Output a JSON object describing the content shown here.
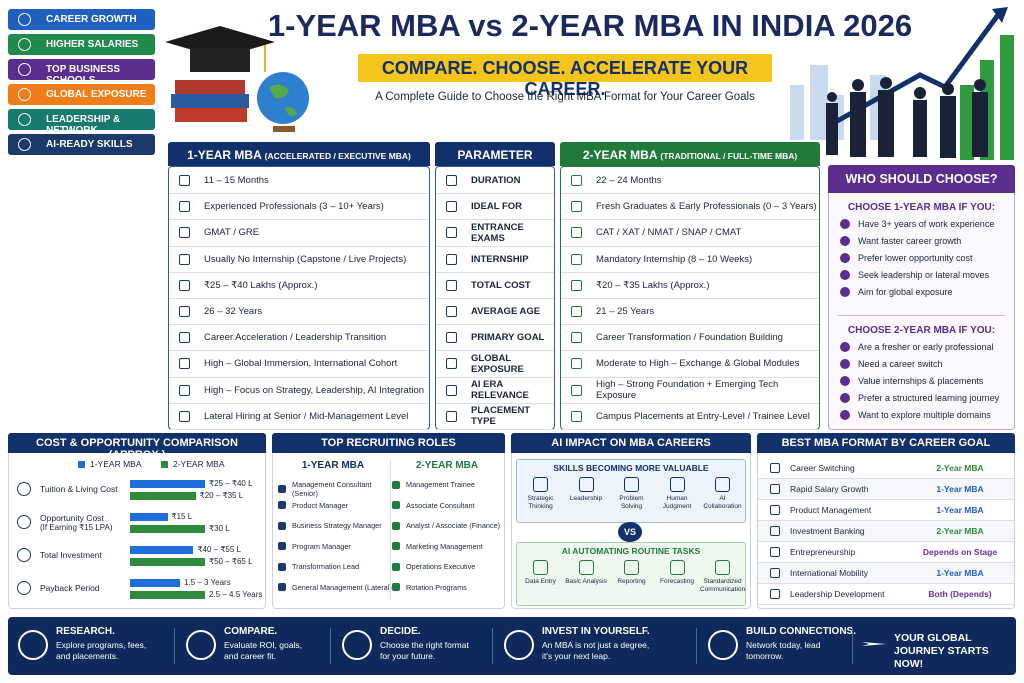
{
  "sidebar": {
    "tags": [
      {
        "text": "CAREER GROWTH",
        "color": "#1f5fbf"
      },
      {
        "text": "HIGHER SALARIES",
        "color": "#1f8a4c"
      },
      {
        "text": "TOP BUSINESS SCHOOLS",
        "color": "#5b2d8e"
      },
      {
        "text": "GLOBAL EXPOSURE",
        "color": "#f07d1a"
      },
      {
        "text": "LEADERSHIP & NETWORK",
        "color": "#177a6e"
      },
      {
        "text": "AI-READY SKILLS",
        "color": "#1b3a6b"
      }
    ]
  },
  "header": {
    "title": "1-YEAR MBA vs 2-YEAR MBA IN INDIA 2026",
    "tagline": "COMPARE. CHOOSE. ACCELERATE YOUR CAREER.",
    "subtitle": "A Complete Guide to Choose the Right MBA Format for Your Career Goals"
  },
  "table": {
    "one_title": "1-YEAR MBA",
    "one_sub": "(ACCELERATED / EXECUTIVE MBA)",
    "param_title": "PARAMETER",
    "two_title": "2-YEAR MBA",
    "two_sub": "(TRADITIONAL / FULL-TIME MBA)",
    "rows": [
      {
        "param": "DURATION",
        "one": "11 – 15 Months",
        "two": "22 – 24 Months"
      },
      {
        "param": "IDEAL FOR",
        "one": "Experienced Professionals (3 – 10+ Years)",
        "two": "Fresh Graduates & Early Professionals (0 – 3 Years)"
      },
      {
        "param": "ENTRANCE EXAMS",
        "one": "GMAT / GRE",
        "two": "CAT / XAT / NMAT / SNAP / CMAT"
      },
      {
        "param": "INTERNSHIP",
        "one": "Usually No Internship (Capstone / Live Projects)",
        "two": "Mandatory Internship (8 – 10 Weeks)"
      },
      {
        "param": "TOTAL COST",
        "one": "₹25 – ₹40 Lakhs (Approx.)",
        "two": "₹20 – ₹35 Lakhs (Approx.)"
      },
      {
        "param": "AVERAGE AGE",
        "one": "26 – 32 Years",
        "two": "21 – 25 Years"
      },
      {
        "param": "PRIMARY GOAL",
        "one": "Career Acceleration / Leadership Transition",
        "two": "Career Transformation / Foundation Building"
      },
      {
        "param": "GLOBAL EXPOSURE",
        "one": "High – Global Immersion, International Cohort",
        "two": "Moderate to High – Exchange & Global Modules"
      },
      {
        "param": "AI ERA RELEVANCE",
        "one": "High – Focus on Strategy, Leadership, AI Integration",
        "two": "High – Strong Foundation + Emerging Tech Exposure"
      },
      {
        "param": "PLACEMENT TYPE",
        "one": "Lateral Hiring at Senior / Mid-Management Level",
        "two": "Campus Placements at Entry-Level / Trainee Level"
      }
    ]
  },
  "who": {
    "title": "WHO SHOULD CHOOSE?",
    "one_title": "CHOOSE 1-YEAR MBA IF YOU:",
    "one_items": [
      "Have 3+ years of work experience",
      "Want faster career growth",
      "Prefer lower opportunity cost",
      "Seek leadership or lateral moves",
      "Aim for global exposure"
    ],
    "two_title": "CHOOSE 2-YEAR MBA IF YOU:",
    "two_items": [
      "Are a fresher or early professional",
      "Need a career switch",
      "Value internships & placements",
      "Prefer a structured learning journey",
      "Want to explore multiple domains"
    ]
  },
  "cost": {
    "title": "COST & OPPORTUNITY COMPARISON (APPROX.)",
    "legend": [
      {
        "text": "1-YEAR MBA",
        "color": "#1e6fd9"
      },
      {
        "text": "2-YEAR MBA",
        "color": "#2e8b3e"
      }
    ],
    "rows": [
      {
        "label": "Tuition & Living Cost",
        "bars": [
          {
            "value": 40,
            "label": "₹25 – ₹40 L"
          },
          {
            "value": 35,
            "label": "₹20 – ₹35 L"
          }
        ]
      },
      {
        "label": "Opportunity Cost",
        "sublabel": "(If Earning ₹15 LPA)",
        "bars": [
          {
            "value": 15,
            "label": "₹15 L"
          },
          {
            "value": 30,
            "label": "₹30 L"
          }
        ]
      },
      {
        "label": "Total Investment",
        "bars": [
          {
            "value": 55,
            "label": "₹40 – ₹55 L"
          },
          {
            "value": 65,
            "label": "₹50 – ₹65 L"
          }
        ]
      },
      {
        "label": "Payback Period",
        "bars": [
          {
            "value": 3,
            "label": "1.5 – 3 Years"
          },
          {
            "value": 4.5,
            "label": "2.5 – 4.5 Years"
          }
        ]
      }
    ]
  },
  "roles": {
    "title": "TOP RECRUITING ROLES",
    "columns": [
      {
        "title": "1-YEAR MBA",
        "items": [
          "Management Consultant (Senior)",
          "Product Manager",
          "Business Strategy Manager",
          "Program Manager",
          "Transformation Lead",
          "General Management (Lateral)"
        ]
      },
      {
        "title": "2-YEAR MBA",
        "items": [
          "Management Trainee",
          "Associate Consultant",
          "Analyst / Associate (Finance)",
          "Marketing Management",
          "Operations Executive",
          "Rotation Programs"
        ]
      }
    ]
  },
  "ai": {
    "title": "AI IMPACT ON MBA CAREERS",
    "more_title": "SKILLS BECOMING MORE VALUABLE",
    "more_items": [
      "Strategic Thinking",
      "Leadership",
      "Problem Solving",
      "Human Judgment",
      "AI Collaboration"
    ],
    "vs": "VS",
    "auto_title": "AI AUTOMATING ROUTINE TASKS",
    "auto_items": [
      "Data Entry",
      "Basic Analysis",
      "Reporting",
      "Forecasting",
      "Standardized Communication"
    ]
  },
  "best": {
    "title": "BEST MBA FORMAT BY CAREER GOAL",
    "rows": [
      {
        "goal": "Career Switching",
        "format": "2-Year MBA",
        "color": "#2e8b3e"
      },
      {
        "goal": "Rapid Salary Growth",
        "format": "1-Year MBA",
        "color": "#1e5fc0"
      },
      {
        "goal": "Product Management",
        "format": "1-Year MBA",
        "color": "#1e5fc0"
      },
      {
        "goal": "Investment Banking",
        "format": "2-Year MBA",
        "color": "#2e8b3e"
      },
      {
        "goal": "Entrepreneurship",
        "format": "Depends on Stage",
        "color": "#6a2fa0"
      },
      {
        "goal": "International Mobility",
        "format": "1-Year MBA",
        "color": "#1e5fc0"
      },
      {
        "goal": "Leadership Development",
        "format": "Both (Depends)",
        "color": "#6a2fa0"
      }
    ]
  },
  "footer": {
    "items": [
      {
        "title": "RESEARCH.",
        "text": "Explore programs, fees, and placements."
      },
      {
        "title": "COMPARE.",
        "text": "Evaluate ROI, goals, and career fit."
      },
      {
        "title": "DECIDE.",
        "text": "Choose the right format for your future."
      },
      {
        "title": "INVEST IN YOURSELF.",
        "text": "An MBA is not just a degree, it's your next leap."
      },
      {
        "title": "BUILD CONNECTIONS.",
        "text": "Network today, lead tomorrow."
      }
    ],
    "closing": "YOUR GLOBAL JOURNEY STARTS NOW!"
  }
}
